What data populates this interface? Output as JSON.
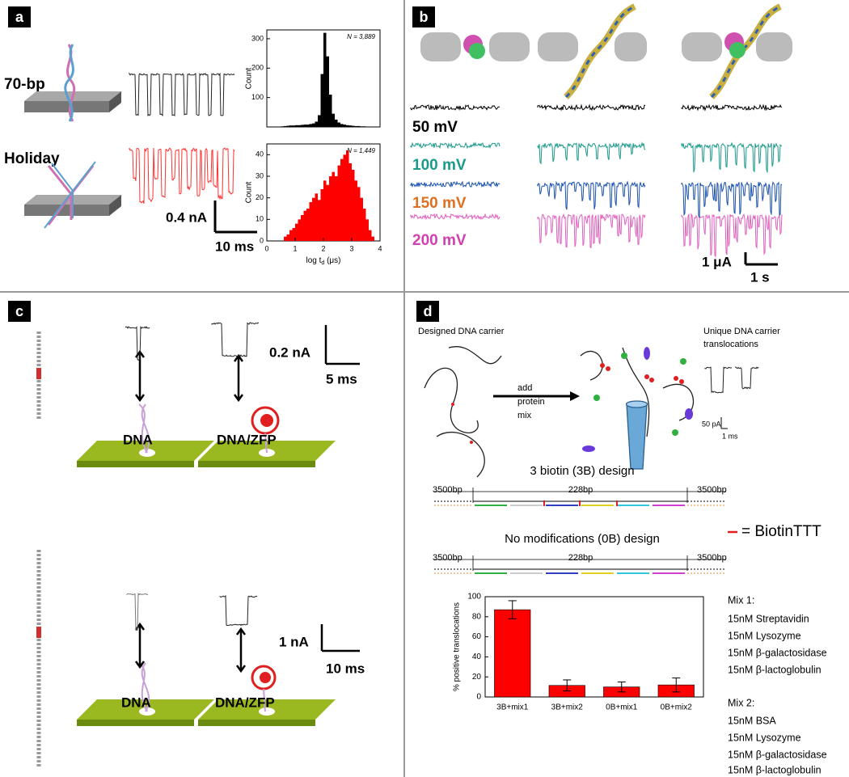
{
  "panels": {
    "a": {
      "label": "a",
      "rows": [
        "70-bp",
        "Holiday"
      ],
      "scale_current": "0.4 nA",
      "scale_time": "10 ms"
    },
    "b": {
      "label": "b",
      "voltages": [
        "50 mV",
        "100 mV",
        "150 mV",
        "200 mV"
      ],
      "scale_current": "1 μA",
      "scale_time": "1 s"
    },
    "c": {
      "label": "c",
      "top": {
        "scale_current": "0.2 nA",
        "scale_time": "5 ms",
        "left": "DNA",
        "right": "DNA/ZFP"
      },
      "bottom": {
        "scale_current": "1 nA",
        "scale_time": "10 ms",
        "left": "DNA",
        "right": "DNA/ZFP"
      }
    },
    "d": {
      "label": "d",
      "carrier": "Designed DNA carrier",
      "arrow": [
        "add",
        "protein",
        "mix"
      ],
      "unique": [
        "Unique DNA carrier",
        "translocations"
      ],
      "scale_current": "50 pA",
      "scale_time": "1 ms",
      "design_3b": {
        "title": "3 biotin (3B) design",
        "lengths": [
          "3500bp",
          "228bp",
          "3500bp"
        ]
      },
      "design_0b": {
        "title": "No modifications (0B) design",
        "lengths": [
          "3500bp",
          "228bp",
          "3500bp"
        ]
      },
      "legend": "= BiotinTTT",
      "mix1": [
        "Mix 1:",
        "15nM Streptavidin",
        "15nM Lysozyme",
        "15nM β-galactosidase",
        "15nM β-lactoglobulin"
      ],
      "mix2": [
        "Mix 2:",
        "15nM BSA",
        "15nM Lysozyme",
        "15nM β-galactosidase",
        "15nM β-lactoglobulin"
      ]
    }
  },
  "chart_data": [
    {
      "type": "histogram",
      "ylabel": "Count",
      "annotation": "N = 3,889",
      "color": "#000000",
      "bins": [
        0,
        0.1,
        0.2,
        0.3,
        0.4,
        0.5,
        0.6,
        0.7,
        0.8,
        0.9,
        1,
        1.1,
        1.2,
        1.3,
        1.4,
        1.5,
        1.6,
        1.7,
        1.8,
        1.9,
        2,
        2.1,
        2.2,
        2.3,
        2.4,
        2.5,
        2.6,
        2.7,
        2.8,
        2.9,
        3,
        3.1,
        3.2,
        3.3,
        3.4,
        3.5,
        3.6,
        3.7,
        3.8,
        3.9,
        4
      ],
      "values": [
        0,
        0,
        0,
        0,
        0,
        2,
        3,
        4,
        5,
        5,
        6,
        6,
        7,
        8,
        8,
        10,
        12,
        18,
        40,
        180,
        320,
        240,
        110,
        45,
        25,
        15,
        10,
        8,
        6,
        5,
        4,
        3,
        3,
        2,
        2,
        1,
        1,
        0,
        0,
        0
      ],
      "xlim": [
        0,
        4
      ],
      "ylim": [
        0,
        330
      ],
      "yticks": [
        100,
        200,
        300
      ]
    },
    {
      "type": "histogram",
      "ylabel": "Count",
      "xlabel": [
        "log t",
        "d",
        " (μs)"
      ],
      "annotation": "N = 1,449",
      "color": "#ff0000",
      "bins": [
        0,
        0.1,
        0.2,
        0.3,
        0.4,
        0.5,
        0.6,
        0.7,
        0.8,
        0.9,
        1,
        1.1,
        1.2,
        1.3,
        1.4,
        1.5,
        1.6,
        1.7,
        1.8,
        1.9,
        2,
        2.1,
        2.2,
        2.3,
        2.4,
        2.5,
        2.6,
        2.7,
        2.8,
        2.9,
        3,
        3.1,
        3.2,
        3.3,
        3.4,
        3.5,
        3.6,
        3.7,
        3.8,
        3.9,
        4
      ],
      "values": [
        0,
        0,
        0,
        0,
        0,
        0,
        2,
        3,
        5,
        6,
        8,
        10,
        12,
        14,
        15,
        18,
        20,
        22,
        19,
        24,
        28,
        26,
        30,
        32,
        30,
        35,
        38,
        40,
        42,
        36,
        33,
        28,
        25,
        20,
        15,
        10,
        5,
        2,
        0,
        0
      ],
      "xlim": [
        0,
        4
      ],
      "xticks": [
        0,
        1,
        2,
        3,
        4
      ],
      "ylim": [
        0,
        45
      ],
      "yticks": [
        0,
        10,
        20,
        30,
        40
      ]
    },
    {
      "type": "bar",
      "ylabel": "% positive translocations",
      "color": "#ff0000",
      "categories": [
        "3B+mix1",
        "3B+mix2",
        "0B+mix1",
        "0B+mix2"
      ],
      "values": [
        87,
        11.5,
        10,
        12
      ],
      "errors": [
        9,
        5.5,
        5,
        7
      ],
      "ylim": [
        0,
        100
      ],
      "yticks": [
        0,
        20,
        40,
        60,
        80,
        100
      ]
    }
  ]
}
